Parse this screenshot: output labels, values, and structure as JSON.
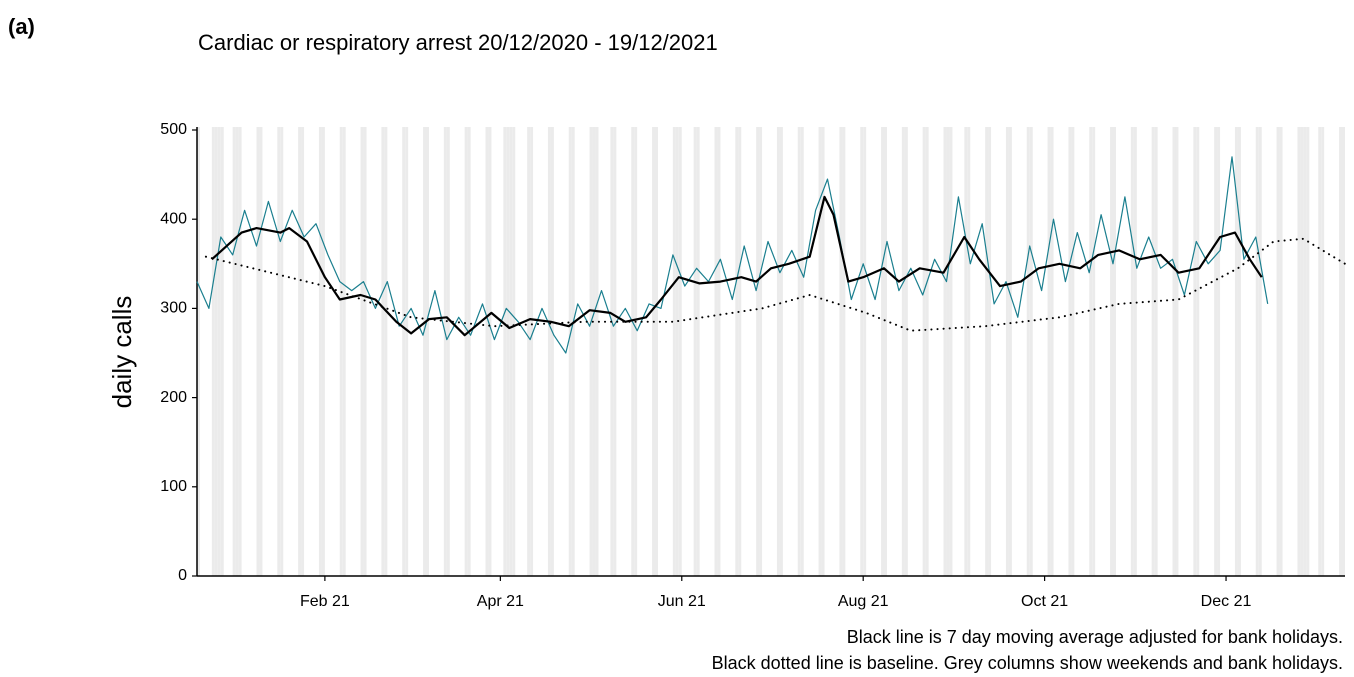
{
  "chart_data": {
    "type": "line",
    "panel_label": "(a)",
    "title": "Cardiac or respiratory arrest 20/12/2020 - 19/12/2021",
    "y_label": "daily calls",
    "notes": [
      "Black line is 7 day moving average adjusted for bank holidays.",
      "Black dotted line is baseline. Grey columns show weekends and bank holidays."
    ],
    "xlim": [
      0,
      386
    ],
    "xticks": [
      {
        "value": 43,
        "label": "Feb 21"
      },
      {
        "value": 102,
        "label": "Apr 21"
      },
      {
        "value": 163,
        "label": "Jun 21"
      },
      {
        "value": 224,
        "label": "Aug 21"
      },
      {
        "value": 285,
        "label": "Oct 21"
      },
      {
        "value": 346,
        "label": "Dec 21"
      }
    ],
    "ylim": [
      0,
      500
    ],
    "yticks": [
      0,
      100,
      200,
      300,
      400,
      500
    ],
    "shade_color": "#ebebeb",
    "shaded_days": [
      0,
      5,
      6,
      7,
      8,
      12,
      13,
      14,
      20,
      21,
      27,
      28,
      34,
      35,
      41,
      42,
      48,
      49,
      55,
      56,
      62,
      63,
      69,
      70,
      76,
      77,
      83,
      84,
      90,
      91,
      97,
      98,
      103,
      104,
      105,
      106,
      111,
      112,
      118,
      119,
      125,
      126,
      132,
      133,
      134,
      139,
      140,
      146,
      147,
      153,
      154,
      160,
      161,
      162,
      167,
      168,
      174,
      175,
      181,
      182,
      188,
      189,
      195,
      196,
      202,
      203,
      209,
      210,
      216,
      217,
      223,
      224,
      230,
      231,
      237,
      238,
      244,
      245,
      251,
      252,
      253,
      258,
      259,
      265,
      266,
      272,
      273,
      279,
      280,
      286,
      287,
      293,
      294,
      300,
      301,
      307,
      308,
      314,
      315,
      321,
      322,
      328,
      329,
      335,
      336,
      342,
      343,
      349,
      350,
      356,
      357,
      363,
      364,
      370,
      371,
      372,
      373,
      377,
      378,
      384,
      385
    ],
    "series": [
      {
        "color": "#1b7f8f",
        "style": "solid",
        "width": 1.2,
        "x": [
          0,
          4,
          8,
          12,
          16,
          20,
          24,
          28,
          32,
          36,
          40,
          44,
          48,
          52,
          56,
          60,
          64,
          68,
          72,
          76,
          80,
          84,
          88,
          92,
          96,
          100,
          104,
          108,
          112,
          116,
          120,
          124,
          128,
          132,
          136,
          140,
          144,
          148,
          152,
          156,
          160,
          164,
          168,
          172,
          176,
          180,
          184,
          188,
          192,
          196,
          200,
          204,
          208,
          212,
          216,
          220,
          224,
          228,
          232,
          236,
          240,
          244,
          248,
          252,
          256,
          260,
          264,
          268,
          272,
          276,
          280,
          284,
          288,
          292,
          296,
          300,
          304,
          308,
          312,
          316,
          320,
          324,
          328,
          332,
          336,
          340,
          344,
          348,
          352,
          356,
          360
        ],
        "values": [
          330,
          300,
          380,
          360,
          410,
          370,
          420,
          375,
          410,
          380,
          395,
          360,
          330,
          320,
          330,
          300,
          330,
          280,
          300,
          270,
          320,
          265,
          290,
          270,
          305,
          265,
          300,
          285,
          265,
          300,
          270,
          250,
          305,
          280,
          320,
          280,
          300,
          275,
          305,
          300,
          360,
          325,
          345,
          330,
          355,
          310,
          370,
          320,
          375,
          340,
          365,
          335,
          410,
          445,
          380,
          310,
          350,
          310,
          375,
          320,
          345,
          315,
          355,
          330,
          425,
          350,
          395,
          305,
          330,
          290,
          370,
          320,
          400,
          330,
          385,
          340,
          405,
          350,
          425,
          345,
          380,
          345,
          355,
          315,
          375,
          350,
          365,
          470,
          355,
          380,
          305
        ]
      },
      {
        "color": "#000000",
        "style": "solid",
        "width": 2.2,
        "x": [
          5,
          15,
          20,
          28,
          31,
          37,
          43,
          48,
          55,
          60,
          67,
          72,
          78,
          84,
          90,
          99,
          105,
          112,
          119,
          125,
          132,
          139,
          144,
          151,
          156,
          162,
          169,
          176,
          183,
          188,
          193,
          199,
          206,
          211,
          214,
          219,
          224,
          231,
          236,
          243,
          251,
          258,
          263,
          270,
          277,
          283,
          290,
          297,
          303,
          310,
          317,
          324,
          330,
          337,
          344,
          349,
          354,
          358
        ],
        "values": [
          355,
          385,
          390,
          385,
          390,
          375,
          335,
          310,
          315,
          310,
          285,
          272,
          288,
          290,
          270,
          295,
          278,
          288,
          285,
          280,
          298,
          295,
          285,
          290,
          310,
          335,
          328,
          330,
          335,
          330,
          345,
          350,
          358,
          425,
          405,
          330,
          335,
          345,
          330,
          345,
          340,
          380,
          355,
          325,
          330,
          345,
          350,
          345,
          360,
          365,
          355,
          360,
          340,
          345,
          380,
          385,
          355,
          335
        ]
      },
      {
        "color": "#000000",
        "style": "dotted",
        "width": 2,
        "x": [
          3,
          43,
          72,
          100,
          130,
          160,
          190,
          206,
          225,
          240,
          265,
          290,
          310,
          330,
          350,
          362,
          372,
          386
        ],
        "values": [
          358,
          325,
          290,
          280,
          285,
          285,
          300,
          315,
          295,
          275,
          280,
          290,
          305,
          310,
          345,
          375,
          378,
          350
        ]
      }
    ]
  }
}
